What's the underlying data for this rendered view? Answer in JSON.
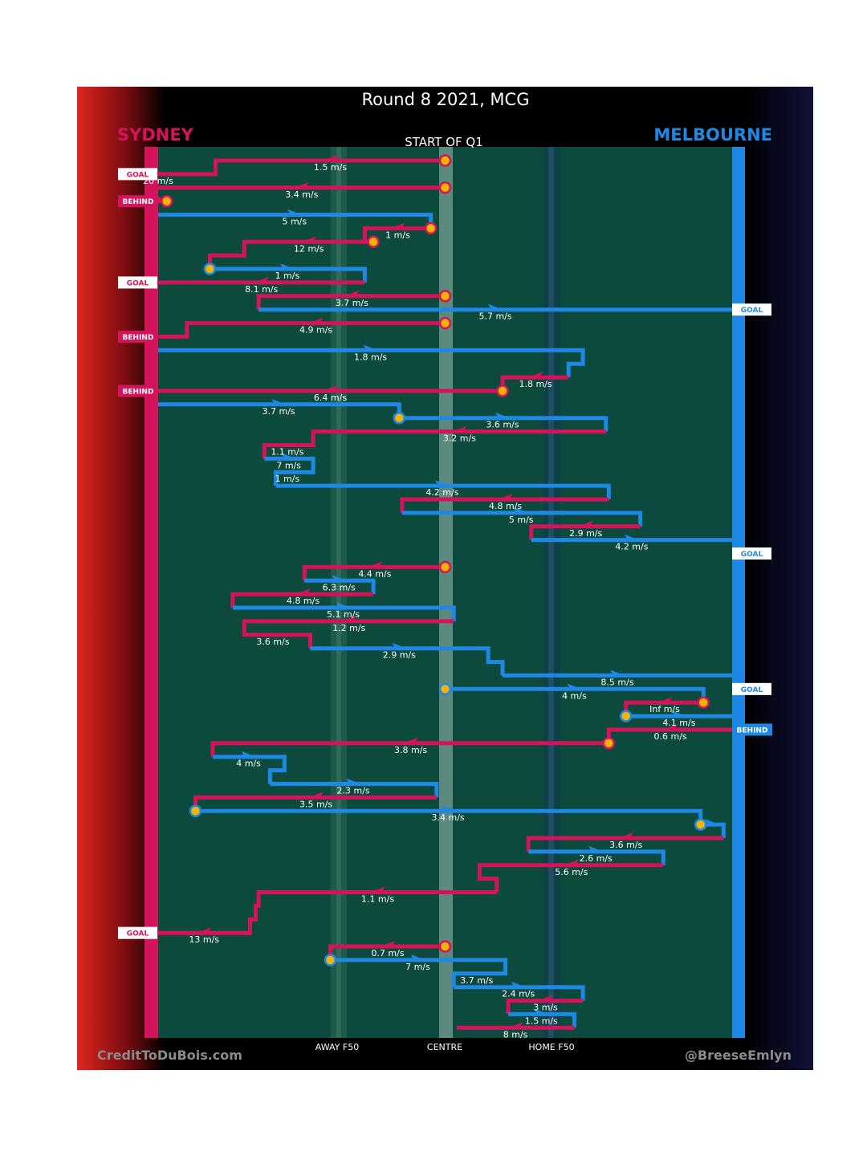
{
  "chart_data": {
    "type": "line",
    "title": "Round 8 2021, MCG",
    "subtitle": "START OF Q1",
    "teams": {
      "left": {
        "name": "SYDNEY",
        "color": "#d4145a"
      },
      "right": {
        "name": "MELBOURNE",
        "color": "#1e88e5"
      }
    },
    "axis_labels": {
      "away": "AWAY F50",
      "centre": "CENTRE",
      "home": "HOME F50"
    },
    "credits": {
      "left": "CreditToDuBois.com",
      "right": "@BreeseEmlyn"
    },
    "outcome_labels": {
      "goal": "GOAL",
      "behind": "BEHIND"
    },
    "outcomes": [
      {
        "row": 2,
        "side": "left",
        "type": "goal"
      },
      {
        "row": 4,
        "side": "left",
        "type": "behind"
      },
      {
        "row": 10,
        "side": "left",
        "type": "goal"
      },
      {
        "row": 12,
        "side": "right",
        "type": "goal"
      },
      {
        "row": 14,
        "side": "left",
        "type": "behind"
      },
      {
        "row": 18,
        "side": "left",
        "type": "behind"
      },
      {
        "row": 30,
        "side": "right",
        "type": "goal"
      },
      {
        "row": 40,
        "side": "right",
        "type": "goal"
      },
      {
        "row": 43,
        "side": "right",
        "type": "behind"
      },
      {
        "row": 58,
        "side": "left",
        "type": "goal"
      }
    ],
    "chains": [
      {
        "team": "SYD",
        "points": [
          [
            0.0,
            1
          ],
          [
            -0.8,
            1
          ],
          [
            -0.8,
            2
          ],
          [
            -1.0,
            2
          ]
        ],
        "label": "1.5 m/s",
        "label_row": 1,
        "start_marker": true
      },
      {
        "team": "SYD",
        "points": [
          [
            -1.0,
            2
          ],
          [
            -1.0,
            2
          ]
        ],
        "label": "20 m/s",
        "label_row": 2
      },
      {
        "team": "SYD",
        "points": [
          [
            0.0,
            3
          ],
          [
            -1.0,
            3
          ]
        ],
        "label": "3.4 m/s",
        "label_row": 3,
        "start_marker": true
      },
      {
        "team": "SYD",
        "points": [
          [
            -1.0,
            4
          ],
          [
            -0.97,
            4
          ]
        ],
        "label": "",
        "label_row": 4,
        "start_marker_end": true
      },
      {
        "team": "MEL",
        "points": [
          [
            -1.0,
            5
          ],
          [
            -0.05,
            5
          ],
          [
            -0.05,
            6
          ]
        ],
        "label": "5 m/s",
        "label_row": 5
      },
      {
        "team": "SYD",
        "points": [
          [
            -0.05,
            6
          ],
          [
            -0.28,
            6
          ],
          [
            -0.28,
            7
          ]
        ],
        "label": "1 m/s",
        "label_row": 6,
        "start_marker": true
      },
      {
        "team": "SYD",
        "points": [
          [
            -0.25,
            7
          ],
          [
            -0.7,
            7
          ],
          [
            -0.7,
            8
          ],
          [
            -0.82,
            8
          ],
          [
            -0.82,
            9
          ]
        ],
        "label": "12 m/s",
        "label_row": 7,
        "start_marker": true
      },
      {
        "team": "MEL",
        "points": [
          [
            -0.82,
            9
          ],
          [
            -0.28,
            9
          ],
          [
            -0.28,
            10
          ]
        ],
        "label": "1 m/s",
        "label_row": 9,
        "start_marker": true
      },
      {
        "team": "SYD",
        "points": [
          [
            -0.28,
            10
          ],
          [
            -1.0,
            10
          ]
        ],
        "label": "8.1 m/s",
        "label_row": 10
      },
      {
        "team": "SYD",
        "points": [
          [
            0.0,
            11
          ],
          [
            -0.65,
            11
          ],
          [
            -0.65,
            12
          ]
        ],
        "label": "3.7 m/s",
        "label_row": 11,
        "start_marker": true
      },
      {
        "team": "MEL",
        "points": [
          [
            -0.65,
            12
          ],
          [
            1.0,
            12
          ]
        ],
        "label": "5.7 m/s",
        "label_row": 12
      },
      {
        "team": "SYD",
        "points": [
          [
            0.0,
            13
          ],
          [
            -0.9,
            13
          ],
          [
            -0.9,
            14
          ],
          [
            -1.0,
            14
          ]
        ],
        "label": "4.9 m/s",
        "label_row": 13,
        "start_marker": true
      },
      {
        "team": "MEL",
        "points": [
          [
            -1.0,
            15
          ],
          [
            0.48,
            15
          ],
          [
            0.48,
            16
          ],
          [
            0.43,
            16
          ],
          [
            0.43,
            17
          ]
        ],
        "label": "1.8 m/s",
        "label_row": 15
      },
      {
        "team": "SYD",
        "points": [
          [
            0.43,
            17
          ],
          [
            0.2,
            17
          ],
          [
            0.2,
            18
          ]
        ],
        "label": "1.8 m/s",
        "label_row": 17,
        "start_marker_end": true
      },
      {
        "team": "SYD",
        "points": [
          [
            0.2,
            18
          ],
          [
            -1.0,
            18
          ]
        ],
        "label": "6.4 m/s",
        "label_row": 18,
        "start_marker": true
      },
      {
        "team": "MEL",
        "points": [
          [
            -1.0,
            19
          ],
          [
            -0.16,
            19
          ],
          [
            -0.16,
            20
          ]
        ],
        "label": "3.7 m/s",
        "label_row": 19
      },
      {
        "team": "MEL",
        "points": [
          [
            -0.16,
            20
          ],
          [
            0.56,
            20
          ],
          [
            0.56,
            21
          ]
        ],
        "label": "3.6 m/s",
        "label_row": 20,
        "start_marker": true
      },
      {
        "team": "SYD",
        "points": [
          [
            0.56,
            21
          ],
          [
            -0.46,
            21
          ],
          [
            -0.46,
            22
          ],
          [
            -0.63,
            22
          ],
          [
            -0.63,
            23
          ]
        ],
        "label": "3.2 m/s",
        "label_row": 21
      },
      {
        "team": "MEL",
        "points": [
          [
            -0.63,
            23
          ],
          [
            -0.46,
            23
          ],
          [
            -0.46,
            24
          ],
          [
            -0.59,
            24
          ],
          [
            -0.59,
            25
          ]
        ],
        "label": "7 m/s",
        "label_row": 23
      },
      {
        "team": "MEL",
        "points": [
          [
            -0.59,
            25
          ],
          [
            0.57,
            25
          ],
          [
            0.57,
            26
          ]
        ],
        "label": "4.2 m/s",
        "label_row": 25
      },
      {
        "team": "SYD",
        "points": [
          [
            0.57,
            26
          ],
          [
            -0.15,
            26
          ],
          [
            -0.15,
            27
          ]
        ],
        "label": "4.8 m/s",
        "label_row": 26
      },
      {
        "team": "MEL",
        "points": [
          [
            -0.15,
            27
          ],
          [
            0.68,
            27
          ],
          [
            0.68,
            28
          ]
        ],
        "label": "5 m/s",
        "label_row": 27
      },
      {
        "team": "SYD",
        "points": [
          [
            0.68,
            28
          ],
          [
            0.3,
            28
          ],
          [
            0.3,
            29
          ]
        ],
        "label": "2.9 m/s",
        "label_row": 28
      },
      {
        "team": "MEL",
        "points": [
          [
            0.3,
            29
          ],
          [
            1.0,
            29
          ]
        ],
        "label": "4.2 m/s",
        "label_row": 29
      },
      {
        "team": "SYD",
        "points": [
          [
            0.0,
            31
          ],
          [
            -0.49,
            31
          ],
          [
            -0.49,
            32
          ]
        ],
        "label": "4.4 m/s",
        "label_row": 31,
        "start_marker": true
      },
      {
        "team": "MEL",
        "points": [
          [
            -0.49,
            32
          ],
          [
            -0.25,
            32
          ],
          [
            -0.25,
            33
          ]
        ],
        "label": "6.3 m/s",
        "label_row": 32
      },
      {
        "team": "SYD",
        "points": [
          [
            -0.25,
            33
          ],
          [
            -0.74,
            33
          ],
          [
            -0.74,
            34
          ]
        ],
        "label": "4.8 m/s",
        "label_row": 33
      },
      {
        "team": "MEL",
        "points": [
          [
            -0.74,
            34
          ],
          [
            0.03,
            34
          ],
          [
            0.03,
            35
          ]
        ],
        "label": "5.1 m/s",
        "label_row": 34
      },
      {
        "team": "SYD",
        "points": [
          [
            0.03,
            35
          ],
          [
            -0.7,
            35
          ],
          [
            -0.7,
            36
          ],
          [
            -0.47,
            36
          ],
          [
            -0.47,
            37
          ]
        ],
        "label": "1.2 m/s",
        "label_row": 35
      },
      {
        "team": "MEL",
        "points": [
          [
            -0.47,
            37
          ],
          [
            0.15,
            37
          ],
          [
            0.15,
            38
          ],
          [
            0.2,
            38
          ],
          [
            0.2,
            39
          ]
        ],
        "label": "2.9 m/s",
        "label_row": 37
      },
      {
        "team": "MEL",
        "points": [
          [
            0.2,
            39
          ],
          [
            1.0,
            39
          ]
        ],
        "label": "8.5 m/s",
        "label_row": 39
      },
      {
        "team": "MEL",
        "points": [
          [
            0.0,
            40
          ],
          [
            0.9,
            40
          ],
          [
            0.9,
            41
          ]
        ],
        "label": "4 m/s",
        "label_row": 40,
        "start_marker": true
      },
      {
        "team": "SYD",
        "points": [
          [
            0.9,
            41
          ],
          [
            0.63,
            41
          ],
          [
            0.63,
            42
          ]
        ],
        "label": "Inf m/s",
        "label_row": 41,
        "start_marker": true
      },
      {
        "team": "MEL",
        "points": [
          [
            0.63,
            42
          ],
          [
            1.0,
            42
          ]
        ],
        "label": "4.1 m/s",
        "label_row": 42,
        "start_marker": true
      },
      {
        "team": "SYD",
        "points": [
          [
            1.0,
            43
          ],
          [
            0.57,
            43
          ],
          [
            0.57,
            44
          ]
        ],
        "label": "0.6 m/s",
        "label_row": 43
      },
      {
        "team": "SYD",
        "points": [
          [
            0.57,
            44
          ],
          [
            -0.81,
            44
          ],
          [
            -0.81,
            45
          ]
        ],
        "label": "3.8 m/s",
        "label_row": 44,
        "start_marker": true
      },
      {
        "team": "MEL",
        "points": [
          [
            -0.81,
            45
          ],
          [
            -0.56,
            45
          ],
          [
            -0.56,
            46
          ],
          [
            -0.61,
            46
          ],
          [
            -0.61,
            47
          ]
        ],
        "label": "4 m/s",
        "label_row": 45
      },
      {
        "team": "MEL",
        "points": [
          [
            -0.61,
            47
          ],
          [
            -0.03,
            47
          ],
          [
            -0.03,
            48
          ]
        ],
        "label": "2.3 m/s",
        "label_row": 47
      },
      {
        "team": "SYD",
        "points": [
          [
            -0.03,
            48
          ],
          [
            -0.87,
            48
          ],
          [
            -0.87,
            49
          ]
        ],
        "label": "3.5 m/s",
        "label_row": 48
      },
      {
        "team": "MEL",
        "points": [
          [
            -0.87,
            49
          ],
          [
            0.89,
            49
          ],
          [
            0.89,
            50
          ]
        ],
        "label": "3.4 m/s",
        "label_row": 49,
        "start_marker": true
      },
      {
        "team": "MEL",
        "points": [
          [
            0.89,
            50
          ],
          [
            0.97,
            50
          ],
          [
            0.97,
            51
          ]
        ],
        "label": "",
        "label_row": 50,
        "start_marker": true
      },
      {
        "team": "SYD",
        "points": [
          [
            0.97,
            51
          ],
          [
            0.29,
            51
          ],
          [
            0.29,
            52
          ]
        ],
        "label": "3.6 m/s",
        "label_row": 51
      },
      {
        "team": "MEL",
        "points": [
          [
            0.29,
            52
          ],
          [
            0.76,
            52
          ],
          [
            0.76,
            53
          ]
        ],
        "label": "2.6 m/s",
        "label_row": 52
      },
      {
        "team": "SYD",
        "points": [
          [
            0.76,
            53
          ],
          [
            0.12,
            53
          ],
          [
            0.12,
            54
          ],
          [
            0.18,
            54
          ],
          [
            0.18,
            55
          ]
        ],
        "label": "5.6 m/s",
        "label_row": 53
      },
      {
        "team": "SYD",
        "points": [
          [
            0.18,
            55
          ],
          [
            -0.65,
            55
          ],
          [
            -0.65,
            56
          ],
          [
            -0.66,
            56
          ],
          [
            -0.66,
            57
          ],
          [
            -0.68,
            57
          ],
          [
            -0.68,
            58
          ],
          [
            -1.0,
            58
          ]
        ],
        "label": "1.1 m/s",
        "label_row": 55
      },
      {
        "team": "SYD",
        "points": [
          [
            -0.68,
            58
          ],
          [
            -1.0,
            58
          ]
        ],
        "label": "13 m/s",
        "label_row": 58
      },
      {
        "team": "SYD",
        "points": [
          [
            0.0,
            59
          ],
          [
            -0.4,
            59
          ],
          [
            -0.4,
            60
          ]
        ],
        "label": "0.7 m/s",
        "label_row": 59,
        "start_marker": true
      },
      {
        "team": "MEL",
        "points": [
          [
            -0.4,
            60
          ],
          [
            0.21,
            60
          ],
          [
            0.21,
            61
          ],
          [
            0.03,
            61
          ],
          [
            0.03,
            62
          ]
        ],
        "label": "7 m/s",
        "label_row": 60,
        "start_marker": true
      },
      {
        "team": "MEL",
        "points": [
          [
            0.03,
            62
          ],
          [
            0.48,
            62
          ],
          [
            0.48,
            63
          ]
        ],
        "label": "2.4 m/s",
        "label_row": 62
      },
      {
        "team": "SYD",
        "points": [
          [
            0.48,
            63
          ],
          [
            0.22,
            63
          ],
          [
            0.22,
            64
          ]
        ],
        "label": "3 m/s",
        "label_row": 63
      },
      {
        "team": "MEL",
        "points": [
          [
            0.22,
            64
          ],
          [
            0.45,
            64
          ],
          [
            0.45,
            65
          ]
        ],
        "label": "1.5 m/s",
        "label_row": 64
      },
      {
        "team": "SYD",
        "points": [
          [
            0.45,
            65
          ],
          [
            0.04,
            65
          ]
        ],
        "label": "8 m/s",
        "label_row": 65
      }
    ],
    "extra_labels": [
      {
        "text": "1.1 m/s",
        "x": -0.55,
        "row": 22
      },
      {
        "text": "1 m/s",
        "x": -0.55,
        "row": 24
      },
      {
        "text": "3.7 m/s",
        "x": 0.11,
        "row": 61
      },
      {
        "text": "3.6 m/s",
        "x": -0.6,
        "row": 36
      }
    ]
  }
}
